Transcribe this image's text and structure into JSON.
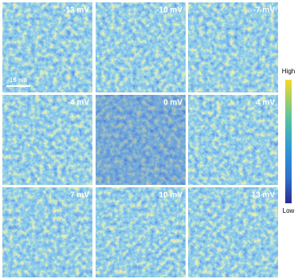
{
  "panels": [
    {
      "label": "-13 mV"
    },
    {
      "label": "-10 mV"
    },
    {
      "label": "-7 mV"
    },
    {
      "label": "-4 mV"
    },
    {
      "label": "0 mV"
    },
    {
      "label": "4 mV"
    },
    {
      "label": "7 mV"
    },
    {
      "label": "10 mV"
    },
    {
      "label": "13 mV"
    }
  ],
  "scale_bar": {
    "label": "15 nm"
  },
  "colorbar": {
    "high": "High",
    "low": "Low"
  }
}
